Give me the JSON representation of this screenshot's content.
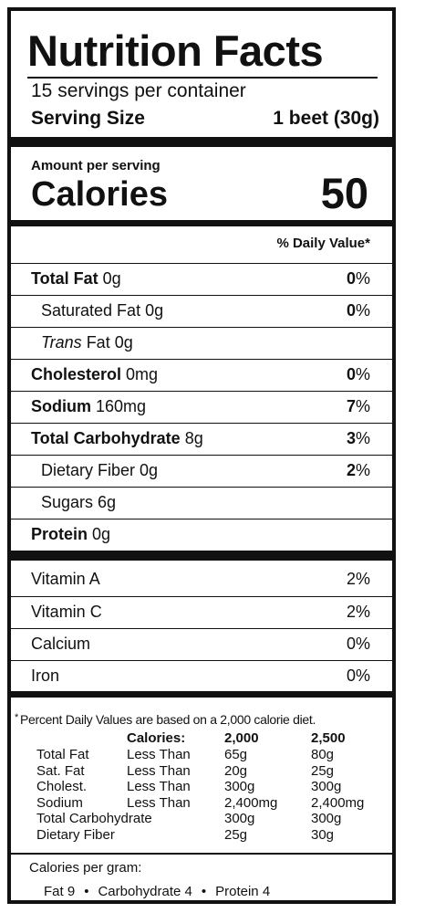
{
  "label": {
    "title": "Nutrition Facts",
    "servings_per_container": "15 servings per container",
    "serving_size_label": "Serving Size",
    "serving_size_value": "1 beet (30g)",
    "amount_per_serving": "Amount per serving",
    "calories_label": "Calories",
    "calories_value": "50",
    "daily_value_header": "% Daily Value*"
  },
  "nutrients": [
    {
      "bold": "Total Fat",
      "rest": " 0g",
      "pct_num": "0",
      "pct_sym": "%"
    },
    {
      "plain": "Saturated Fat 0g",
      "pct_num": "0",
      "pct_sym": "%"
    },
    {
      "italic": "Trans",
      "rest": " Fat 0g"
    },
    {
      "bold": "Cholesterol",
      "rest": " 0mg",
      "pct_num": "0",
      "pct_sym": "%"
    },
    {
      "bold": "Sodium",
      "rest": " 160mg",
      "pct_num": "7",
      "pct_sym": "%"
    },
    {
      "bold": "Total Carbohydrate",
      "rest": " 8g",
      "pct_num": "3",
      "pct_sym": "%"
    },
    {
      "plain": "Dietary Fiber 0g",
      "pct_num": "2",
      "pct_sym": "%"
    },
    {
      "plain": "Sugars 6g"
    },
    {
      "bold": "Protein",
      "rest": " 0g"
    }
  ],
  "vitamins": [
    {
      "name": "Vitamin A",
      "pct": "2%"
    },
    {
      "name": "Vitamin C",
      "pct": "2%"
    },
    {
      "name": "Calcium",
      "pct": "0%"
    },
    {
      "name": "Iron",
      "pct": "0%"
    }
  ],
  "footnote": {
    "asterisk": "*",
    "text": "Percent Daily Values are based on a 2,000 calorie diet.",
    "calories_header": "Calories:",
    "col_2000": "2,000",
    "col_2500": "2,500",
    "rows": [
      {
        "name": "Total Fat",
        "qual": "Less Than",
        "v1": "65g",
        "v2": "80g"
      },
      {
        "name": "Sat. Fat",
        "qual": "Less Than",
        "v1": "20g",
        "v2": "25g"
      },
      {
        "name": "Cholest.",
        "qual": "Less Than",
        "v1": "300g",
        "v2": "300g"
      },
      {
        "name": "Sodium",
        "qual": "Less Than",
        "v1": "2,400mg",
        "v2": "2,400mg"
      },
      {
        "name": "Total Carbohydrate",
        "qual": "",
        "v1": "300g",
        "v2": "300g"
      },
      {
        "name": "Dietary Fiber",
        "qual": "",
        "v1": "25g",
        "v2": "30g"
      }
    ],
    "calories_per_gram": "Calories per gram:",
    "fat": "Fat 9",
    "carb": "Carbohydrate 4",
    "protein": "Protein 4",
    "bullet": "•"
  }
}
